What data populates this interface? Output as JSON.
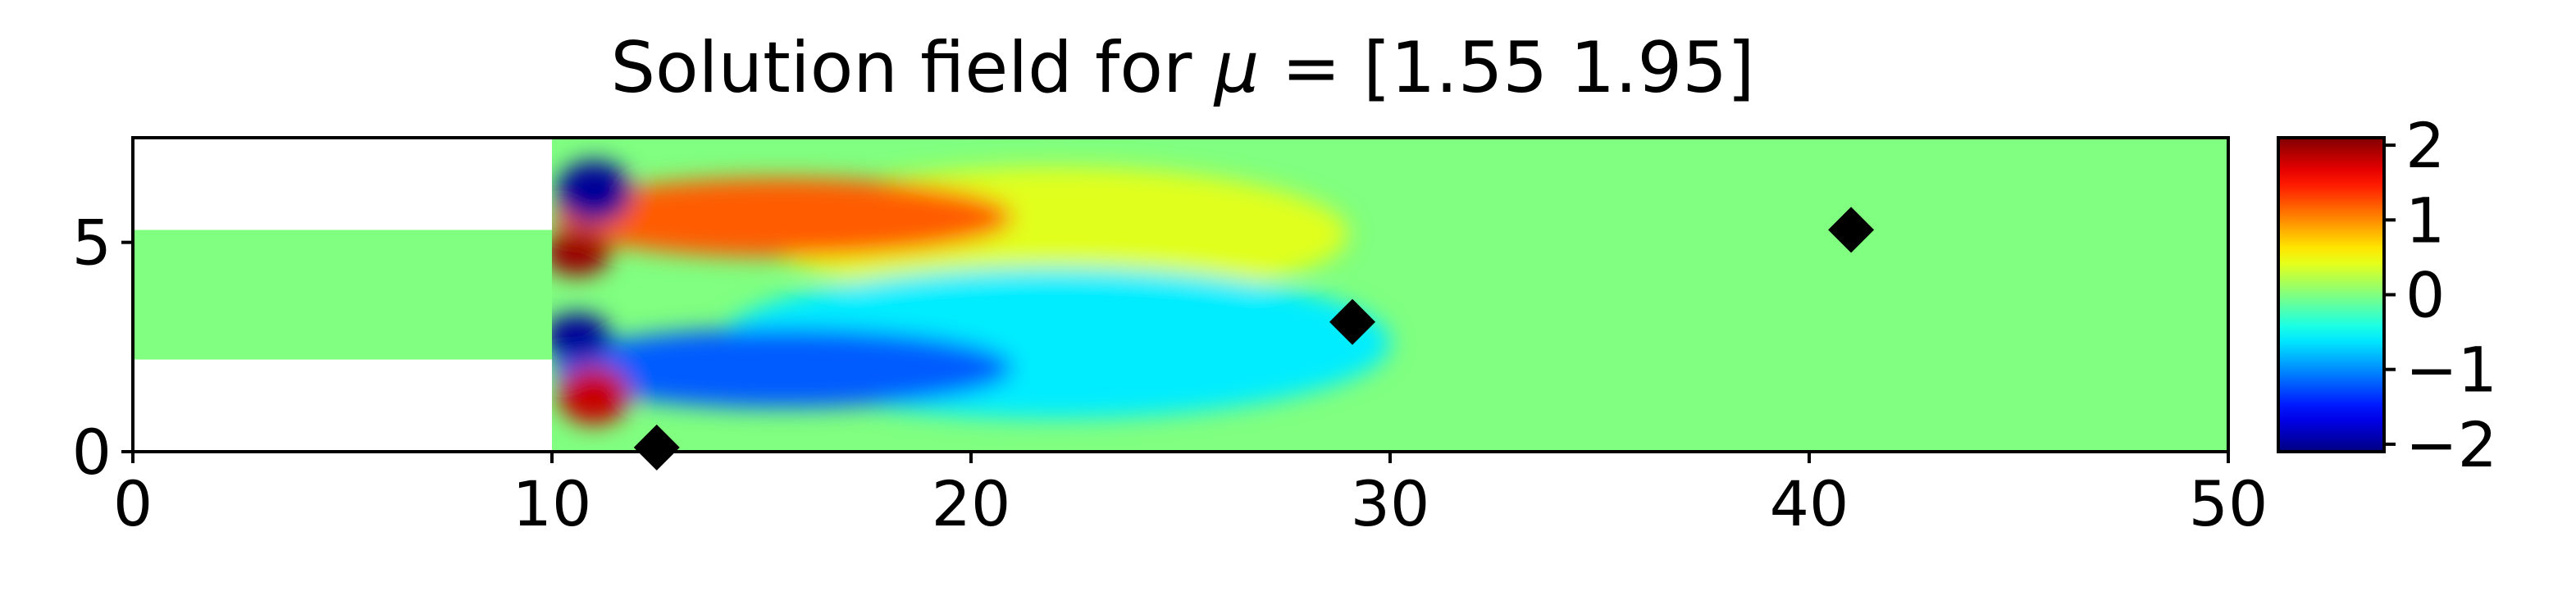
{
  "chart_data": {
    "type": "heatmap",
    "title_prefix": "Solution field for ",
    "title_symbol": "μ",
    "title_suffix": " = [1.55 1.95]",
    "xlabel": "",
    "ylabel": "",
    "xlim": [
      0,
      50
    ],
    "ylim": [
      0,
      7.5
    ],
    "xticks": [
      0,
      10,
      20,
      30,
      40,
      50
    ],
    "yticks": [
      0,
      5
    ],
    "channel": {
      "inlet": {
        "x": [
          0,
          10
        ],
        "y": [
          2.2,
          5.3
        ]
      },
      "main": {
        "x": [
          10,
          50
        ],
        "y": [
          0,
          7.5
        ]
      }
    },
    "field_features": [
      {
        "x": 11,
        "y": 6.2,
        "value": -2.0,
        "rx": 0.9,
        "ry": 0.75
      },
      {
        "x": 10.6,
        "y": 4.75,
        "value": 2.0,
        "rx": 0.8,
        "ry": 0.55
      },
      {
        "x": 15.5,
        "y": 5.6,
        "value": 1.2,
        "rx": 5.5,
        "ry": 0.95
      },
      {
        "x": 10.6,
        "y": 2.75,
        "value": -2.0,
        "rx": 0.8,
        "ry": 0.55
      },
      {
        "x": 15.5,
        "y": 2.0,
        "value": -1.2,
        "rx": 5.5,
        "ry": 0.95
      },
      {
        "x": 11.0,
        "y": 1.35,
        "value": 1.8,
        "rx": 0.85,
        "ry": 0.7
      },
      {
        "x": 22,
        "y": 2.6,
        "value": -0.6,
        "rx": 8,
        "ry": 1.8
      },
      {
        "x": 22,
        "y": 5.2,
        "value": 0.4,
        "rx": 7,
        "ry": 1.6
      }
    ],
    "markers": {
      "shape": "diamond",
      "color": "#000000",
      "points": [
        {
          "x": 12.5,
          "y": 0.1
        },
        {
          "x": 29.1,
          "y": 3.1
        },
        {
          "x": 41.0,
          "y": 5.3
        }
      ]
    },
    "colorbar": {
      "range": [
        -2.1,
        2.1
      ],
      "ticks": [
        2,
        1,
        0,
        -1,
        -2
      ],
      "tick_labels": [
        "2",
        "1",
        "0",
        "−1",
        "−2"
      ],
      "colormap": "jet"
    },
    "background_value": 0,
    "grid": false
  }
}
